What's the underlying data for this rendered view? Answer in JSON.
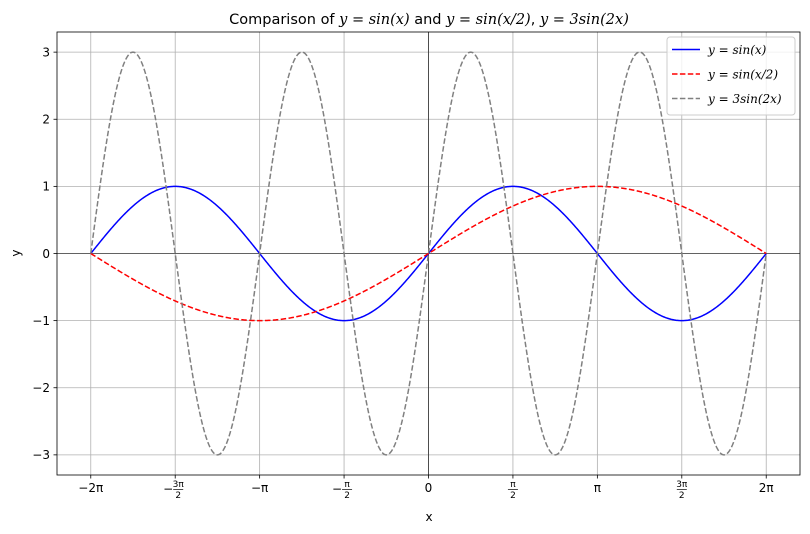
{
  "chart_data": {
    "type": "line",
    "title": {
      "prefix": "Comparison of ",
      "eq1": "y = sin(x)",
      "middle": " and ",
      "eq2": "y = sin(x/2)",
      "sep": ", ",
      "eq3": "y = 3sin(2x)"
    },
    "xlabel": "x",
    "ylabel": "y",
    "xlim": [
      -6.9115,
      6.9115
    ],
    "ylim": [
      -3.3,
      3.3
    ],
    "grid": true,
    "legend_position": "top-right",
    "x_ticks": [
      {
        "value": -6.283185,
        "label": "−2π",
        "kind": "plain"
      },
      {
        "value": -4.712389,
        "sign": "−",
        "num": "3π",
        "den": "2",
        "kind": "frac"
      },
      {
        "value": -3.141593,
        "label": "−π",
        "kind": "plain"
      },
      {
        "value": -1.570796,
        "sign": "−",
        "num": "π",
        "den": "2",
        "kind": "frac"
      },
      {
        "value": 0,
        "label": "0",
        "kind": "plain"
      },
      {
        "value": 1.570796,
        "sign": "",
        "num": "π",
        "den": "2",
        "kind": "frac"
      },
      {
        "value": 3.141593,
        "label": "π",
        "kind": "plain"
      },
      {
        "value": 4.712389,
        "sign": "",
        "num": "3π",
        "den": "2",
        "kind": "frac"
      },
      {
        "value": 6.283185,
        "label": "2π",
        "kind": "plain"
      }
    ],
    "y_ticks": [
      {
        "value": -3,
        "label": "−3"
      },
      {
        "value": -2,
        "label": "−2"
      },
      {
        "value": -1,
        "label": "−1"
      },
      {
        "value": 0,
        "label": "0"
      },
      {
        "value": 1,
        "label": "1"
      },
      {
        "value": 2,
        "label": "2"
      },
      {
        "value": 3,
        "label": "3"
      }
    ],
    "x_domain": [
      -6.283185,
      6.283185
    ],
    "series": [
      {
        "name": "y = sin(x)",
        "function": "sin(x)",
        "color": "#0000ff",
        "dash": "solid"
      },
      {
        "name": "y = sin(x/2)",
        "function": "sin(x/2)",
        "color": "#ff0000",
        "dash": "dashed"
      },
      {
        "name": "y = 3sin(2x)",
        "function": "3*sin(2*x)",
        "color": "#808080",
        "dash": "dashed"
      }
    ]
  }
}
